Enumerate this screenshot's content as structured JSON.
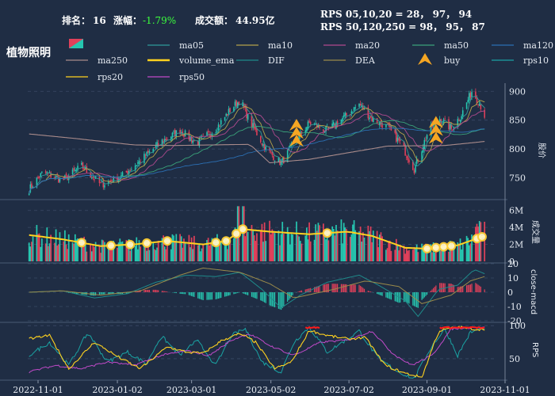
{
  "header": {
    "rank_label": "排名：",
    "rank_value": "16",
    "change_label": "涨幅：",
    "change_value": "-1.79%",
    "turnover_label": "成交额：",
    "turnover_value": "44.95亿",
    "rps_line1": "RPS 05,10,20 = 28， 97， 94",
    "rps_line2": "RPS 50,120,250 = 98， 95， 87"
  },
  "sector_name": "植物照明",
  "colors": {
    "background": "#1f2d44",
    "up": "#26c6b0",
    "down": "#e0405a",
    "buy": "#f5a623",
    "ma05": "#2f9c9a",
    "ma10": "#b5a24a",
    "ma20": "#b04a8e",
    "ma50": "#3aa37a",
    "ma120": "#2b6fb3",
    "ma250": "#a88a8a",
    "volume_ema": "#ffd21f",
    "dif": "#1f8a8a",
    "dea": "#9a8a4a",
    "rps10": "#1aa3a3",
    "rps20": "#ffd21f",
    "rps50": "#c04ac8",
    "rps_high": "#ff1a1a"
  },
  "legend": [
    {
      "key": "candles",
      "label": "",
      "type": "candle"
    },
    {
      "key": "ma05",
      "label": "ma05",
      "type": "line"
    },
    {
      "key": "ma10",
      "label": "ma10",
      "type": "line"
    },
    {
      "key": "ma20",
      "label": "ma20",
      "type": "line"
    },
    {
      "key": "ma50",
      "label": "ma50",
      "type": "line"
    },
    {
      "key": "ma120",
      "label": "ma120",
      "type": "line"
    },
    {
      "key": "ma250",
      "label": "ma250",
      "type": "line"
    },
    {
      "key": "volume_ema",
      "label": "volume_ema",
      "type": "thick"
    },
    {
      "key": "dif",
      "label": "DIF",
      "type": "line"
    },
    {
      "key": "dea",
      "label": "DEA",
      "type": "line"
    },
    {
      "key": "buy",
      "label": "buy",
      "type": "marker"
    },
    {
      "key": "rps10",
      "label": "rps10",
      "type": "line"
    },
    {
      "key": "rps20",
      "label": "rps20",
      "type": "line"
    },
    {
      "key": "rps50",
      "label": "rps50",
      "type": "line"
    }
  ],
  "chart_data": {
    "type": "line",
    "x_range": [
      "2022-10-25",
      "2023-10-16"
    ],
    "x_tick_labels": [
      "2022-11-01",
      "2023-01-02",
      "2023-03-01",
      "2023-05-02",
      "2023-07-02",
      "2023-09-01",
      "2023-11-01"
    ],
    "x_tick_dates": [
      "2022-11-01",
      "2023-01-02",
      "2023-03-01",
      "2023-05-02",
      "2023-07-02",
      "2023-09-01",
      "2023-11-01"
    ],
    "price_panel": {
      "ylabel": "股价",
      "ylim": [
        715,
        910
      ],
      "ticks": [
        750,
        800,
        850,
        900
      ],
      "close_keypoints": [
        [
          "2022-10-25",
          730
        ],
        [
          "2022-11-05",
          760
        ],
        [
          "2022-11-20",
          745
        ],
        [
          "2022-12-05",
          770
        ],
        [
          "2022-12-20",
          738
        ],
        [
          "2023-01-05",
          752
        ],
        [
          "2023-01-20",
          780
        ],
        [
          "2023-02-05",
          812
        ],
        [
          "2023-02-20",
          832
        ],
        [
          "2023-03-05",
          810
        ],
        [
          "2023-03-20",
          835
        ],
        [
          "2023-04-01",
          870
        ],
        [
          "2023-04-08",
          885
        ],
        [
          "2023-04-15",
          850
        ],
        [
          "2023-04-28",
          800
        ],
        [
          "2023-05-10",
          775
        ],
        [
          "2023-05-20",
          810
        ],
        [
          "2023-06-01",
          845
        ],
        [
          "2023-06-15",
          832
        ],
        [
          "2023-07-01",
          860
        ],
        [
          "2023-07-10",
          878
        ],
        [
          "2023-07-20",
          852
        ],
        [
          "2023-08-01",
          838
        ],
        [
          "2023-08-12",
          808
        ],
        [
          "2023-08-22",
          765
        ],
        [
          "2023-09-01",
          825
        ],
        [
          "2023-09-10",
          855
        ],
        [
          "2023-09-20",
          835
        ],
        [
          "2023-09-28",
          860
        ],
        [
          "2023-10-06",
          900
        ],
        [
          "2023-10-12",
          880
        ],
        [
          "2023-10-16",
          858
        ]
      ],
      "ma250_keypoints": [
        [
          "2022-10-25",
          826
        ],
        [
          "2022-12-01",
          818
        ],
        [
          "2023-01-15",
          807
        ],
        [
          "2023-02-15",
          806
        ],
        [
          "2023-04-15",
          808
        ],
        [
          "2023-04-18",
          803
        ],
        [
          "2023-05-01",
          776
        ],
        [
          "2023-06-01",
          782
        ],
        [
          "2023-08-01",
          805
        ],
        [
          "2023-09-15",
          806
        ],
        [
          "2023-10-16",
          813
        ]
      ],
      "buy_signals": [
        {
          "date": "2023-05-22",
          "price": 815
        },
        {
          "date": "2023-09-08",
          "price": 820
        }
      ]
    },
    "volume_panel": {
      "ylabel": "成交量",
      "ylim": [
        0,
        7
      ],
      "ticks": [
        0,
        2,
        4,
        6
      ],
      "tick_labels": [
        "0",
        "2M",
        "4M",
        "6M"
      ],
      "ema_keypoints": [
        [
          "2022-10-25",
          3.1
        ],
        [
          "2022-11-20",
          2.6
        ],
        [
          "2022-12-20",
          1.8
        ],
        [
          "2023-01-15",
          2.0
        ],
        [
          "2023-02-10",
          2.4
        ],
        [
          "2023-03-10",
          2.0
        ],
        [
          "2023-03-28",
          2.4
        ],
        [
          "2023-04-10",
          3.8
        ],
        [
          "2023-05-01",
          3.5
        ],
        [
          "2023-06-01",
          3.2
        ],
        [
          "2023-07-01",
          3.5
        ],
        [
          "2023-07-20",
          3.0
        ],
        [
          "2023-08-15",
          1.6
        ],
        [
          "2023-09-01",
          1.5
        ],
        [
          "2023-09-25",
          1.9
        ],
        [
          "2023-10-16",
          3.0
        ]
      ]
    },
    "macd_panel": {
      "ylabel": "close-macd",
      "ylim": [
        -20,
        20
      ],
      "ticks": [
        -20,
        -10,
        0,
        10,
        20
      ],
      "dif_keypoints": [
        [
          "2022-10-25",
          0
        ],
        [
          "2022-11-20",
          1
        ],
        [
          "2022-12-15",
          -4
        ],
        [
          "2023-01-10",
          -1
        ],
        [
          "2023-02-01",
          7
        ],
        [
          "2023-02-25",
          12
        ],
        [
          "2023-03-20",
          11
        ],
        [
          "2023-04-08",
          14
        ],
        [
          "2023-04-25",
          2
        ],
        [
          "2023-05-10",
          -11
        ],
        [
          "2023-05-25",
          -2
        ],
        [
          "2023-06-15",
          7
        ],
        [
          "2023-07-10",
          12
        ],
        [
          "2023-07-25",
          5
        ],
        [
          "2023-08-15",
          -6
        ],
        [
          "2023-08-25",
          -17
        ],
        [
          "2023-09-10",
          2
        ],
        [
          "2023-09-25",
          5
        ],
        [
          "2023-10-08",
          16
        ],
        [
          "2023-10-16",
          13
        ]
      ],
      "dea_keypoints": [
        [
          "2022-10-25",
          0
        ],
        [
          "2022-11-20",
          1
        ],
        [
          "2022-12-20",
          -2
        ],
        [
          "2023-01-20",
          1
        ],
        [
          "2023-02-20",
          12
        ],
        [
          "2023-03-10",
          17
        ],
        [
          "2023-04-08",
          14
        ],
        [
          "2023-05-01",
          6
        ],
        [
          "2023-05-20",
          -4
        ],
        [
          "2023-06-20",
          2
        ],
        [
          "2023-07-15",
          8
        ],
        [
          "2023-08-10",
          4
        ],
        [
          "2023-08-28",
          -8
        ],
        [
          "2023-09-20",
          -2
        ],
        [
          "2023-10-05",
          8
        ],
        [
          "2023-10-16",
          11
        ]
      ]
    },
    "rps_panel": {
      "ylabel": "RPS",
      "ylim": [
        20,
        105
      ],
      "ticks": [
        50,
        100
      ],
      "rps10_keypoints": [
        [
          "2022-10-25",
          55
        ],
        [
          "2022-11-10",
          75
        ],
        [
          "2022-11-25",
          40
        ],
        [
          "2022-12-10",
          90
        ],
        [
          "2022-12-25",
          45
        ],
        [
          "2023-01-10",
          60
        ],
        [
          "2023-01-25",
          42
        ],
        [
          "2023-02-05",
          85
        ],
        [
          "2023-02-20",
          55
        ],
        [
          "2023-03-05",
          78
        ],
        [
          "2023-03-20",
          40
        ],
        [
          "2023-04-01",
          85
        ],
        [
          "2023-04-12",
          95
        ],
        [
          "2023-04-25",
          45
        ],
        [
          "2023-05-10",
          30
        ],
        [
          "2023-05-20",
          75
        ],
        [
          "2023-06-01",
          98
        ],
        [
          "2023-06-15",
          60
        ],
        [
          "2023-07-01",
          80
        ],
        [
          "2023-07-10",
          92
        ],
        [
          "2023-07-25",
          50
        ],
        [
          "2023-08-10",
          30
        ],
        [
          "2023-08-22",
          20
        ],
        [
          "2023-09-05",
          70
        ],
        [
          "2023-09-15",
          95
        ],
        [
          "2023-09-25",
          55
        ],
        [
          "2023-10-05",
          90
        ],
        [
          "2023-10-16",
          97
        ]
      ],
      "rps20_keypoints": [
        [
          "2022-10-25",
          80
        ],
        [
          "2022-11-10",
          85
        ],
        [
          "2022-11-25",
          35
        ],
        [
          "2022-12-15",
          75
        ],
        [
          "2023-01-05",
          50
        ],
        [
          "2023-01-20",
          35
        ],
        [
          "2023-02-10",
          68
        ],
        [
          "2023-02-25",
          60
        ],
        [
          "2023-03-10",
          58
        ],
        [
          "2023-03-25",
          78
        ],
        [
          "2023-04-08",
          88
        ],
        [
          "2023-04-20",
          75
        ],
        [
          "2023-05-05",
          35
        ],
        [
          "2023-05-18",
          45
        ],
        [
          "2023-06-01",
          93
        ],
        [
          "2023-06-15",
          85
        ],
        [
          "2023-07-01",
          80
        ],
        [
          "2023-07-15",
          82
        ],
        [
          "2023-07-30",
          40
        ],
        [
          "2023-08-15",
          28
        ],
        [
          "2023-08-28",
          22
        ],
        [
          "2023-09-10",
          92
        ],
        [
          "2023-09-25",
          98
        ],
        [
          "2023-10-08",
          95
        ],
        [
          "2023-10-16",
          94
        ]
      ],
      "rps50_keypoints": [
        [
          "2022-10-25",
          30
        ],
        [
          "2022-11-15",
          40
        ],
        [
          "2022-12-05",
          35
        ],
        [
          "2022-12-25",
          45
        ],
        [
          "2023-01-15",
          40
        ],
        [
          "2023-02-05",
          55
        ],
        [
          "2023-02-25",
          62
        ],
        [
          "2023-03-15",
          55
        ],
        [
          "2023-04-01",
          78
        ],
        [
          "2023-04-15",
          88
        ],
        [
          "2023-05-01",
          70
        ],
        [
          "2023-05-20",
          55
        ],
        [
          "2023-06-10",
          75
        ],
        [
          "2023-07-01",
          78
        ],
        [
          "2023-07-20",
          92
        ],
        [
          "2023-08-05",
          58
        ],
        [
          "2023-08-20",
          40
        ],
        [
          "2023-09-05",
          55
        ],
        [
          "2023-09-20",
          95
        ],
        [
          "2023-10-05",
          97
        ],
        [
          "2023-10-16",
          98
        ]
      ],
      "high_segments": [
        [
          "2023-05-28",
          "2023-06-10"
        ],
        [
          "2023-09-10",
          "2023-10-16"
        ]
      ]
    }
  }
}
